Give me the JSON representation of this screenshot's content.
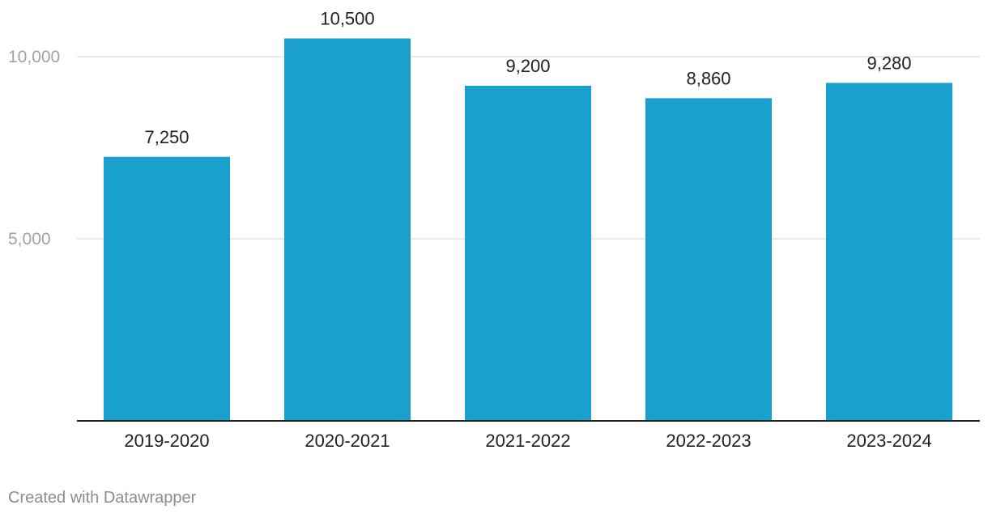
{
  "chart_data": {
    "type": "bar",
    "categories": [
      "2019-2020",
      "2020-2021",
      "2021-2022",
      "2022-2023",
      "2023-2024"
    ],
    "values": [
      7250,
      10500,
      9200,
      8860,
      9280
    ],
    "data_labels": [
      "7,250",
      "10,500",
      "9,200",
      "8,860",
      "9,280"
    ],
    "title": "",
    "xlabel": "",
    "ylabel": "",
    "ylim": [
      0,
      10000
    ],
    "yticks": [
      5000,
      10000
    ],
    "ytick_labels": [
      "5,000",
      "10,000"
    ],
    "grid": true,
    "bar_color": "#1aa0cc"
  },
  "footer": {
    "credit": "Created with Datawrapper"
  }
}
